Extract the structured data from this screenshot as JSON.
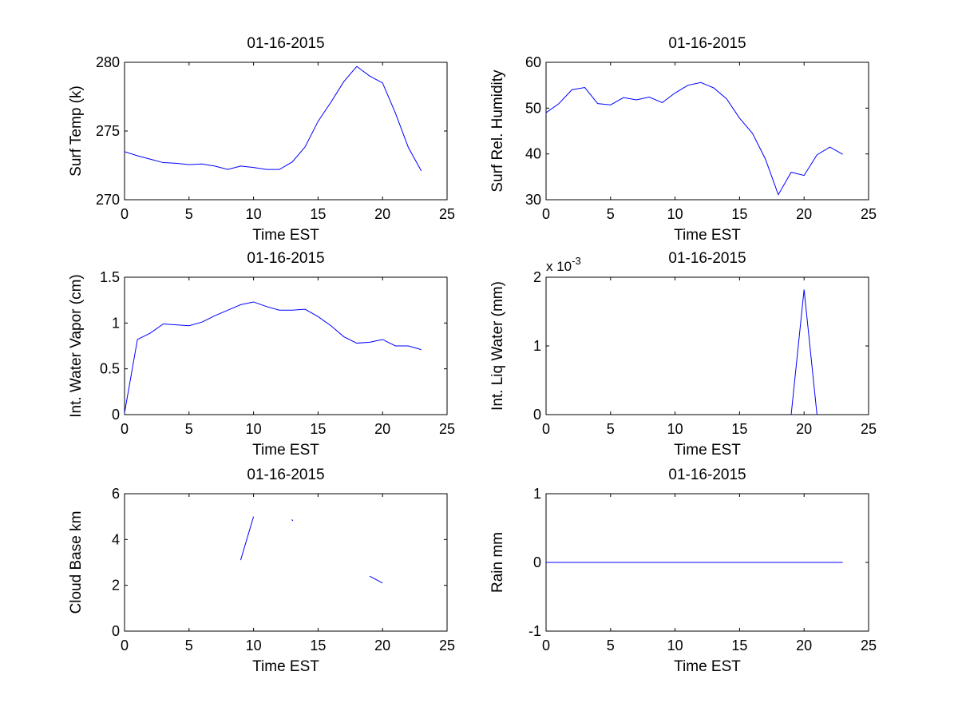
{
  "chart_data": [
    {
      "type": "line",
      "title": "01-16-2015",
      "xlabel": "Time EST",
      "ylabel": "Surf Temp (k)",
      "xlim": [
        0,
        25
      ],
      "ylim": [
        270,
        280
      ],
      "xticks": [
        0,
        5,
        10,
        15,
        20,
        25
      ],
      "yticks": [
        270,
        275,
        280
      ],
      "yticklabels": [
        "270",
        "275",
        "280"
      ],
      "grid": false,
      "line_color": "#0000ff",
      "series": [
        {
          "x": [
            0,
            1,
            2,
            3,
            4,
            5,
            6,
            7,
            8,
            9,
            10,
            11,
            12,
            13,
            14,
            15,
            16,
            17,
            18,
            19,
            20,
            21,
            22,
            23
          ],
          "y": [
            273.5,
            273.2,
            272.95,
            272.7,
            272.65,
            272.55,
            272.6,
            272.45,
            272.2,
            272.45,
            272.35,
            272.2,
            272.2,
            272.75,
            273.85,
            275.7,
            277.1,
            278.6,
            279.7,
            279.0,
            278.5,
            276.3,
            273.8,
            272.1
          ]
        }
      ]
    },
    {
      "type": "line",
      "title": "01-16-2015",
      "xlabel": "Time EST",
      "ylabel": "Surf Rel. Humidity",
      "xlim": [
        0,
        25
      ],
      "ylim": [
        30,
        60
      ],
      "xticks": [
        0,
        5,
        10,
        15,
        20,
        25
      ],
      "yticks": [
        30,
        40,
        50,
        60
      ],
      "yticklabels": [
        "30",
        "40",
        "50",
        "60"
      ],
      "grid": false,
      "line_color": "#0000ff",
      "series": [
        {
          "x": [
            0,
            1,
            2,
            3,
            4,
            5,
            6,
            7,
            8,
            9,
            10,
            11,
            12,
            13,
            14,
            15,
            16,
            17,
            18,
            19,
            20,
            21,
            22,
            23
          ],
          "y": [
            49,
            51,
            54,
            54.5,
            51,
            50.7,
            52.3,
            51.8,
            52.4,
            51.2,
            53.3,
            55,
            55.6,
            54.4,
            52,
            47.8,
            44.5,
            38.9,
            31.1,
            36,
            35.3,
            39.8,
            41.5,
            39.9
          ]
        }
      ]
    },
    {
      "type": "line",
      "title": "01-16-2015",
      "xlabel": "Time EST",
      "ylabel": "Int. Water Vapor (cm)",
      "xlim": [
        0,
        25
      ],
      "ylim": [
        0,
        1.5
      ],
      "xticks": [
        0,
        5,
        10,
        15,
        20,
        25
      ],
      "yticks": [
        0,
        0.5,
        1,
        1.5
      ],
      "yticklabels": [
        "0",
        "0.5",
        "1",
        "1.5"
      ],
      "grid": false,
      "line_color": "#0000ff",
      "series": [
        {
          "x": [
            0,
            1,
            2,
            3,
            4,
            5,
            6,
            7,
            8,
            9,
            10,
            11,
            12,
            13,
            14,
            15,
            16,
            17,
            18,
            19,
            20,
            21,
            22,
            23
          ],
          "y": [
            0.02,
            0.82,
            0.89,
            0.99,
            0.98,
            0.97,
            1.01,
            1.08,
            1.14,
            1.2,
            1.23,
            1.18,
            1.14,
            1.14,
            1.15,
            1.07,
            0.97,
            0.85,
            0.78,
            0.79,
            0.82,
            0.75,
            0.75,
            0.71
          ]
        }
      ]
    },
    {
      "type": "line",
      "title": "01-16-2015",
      "xlabel": "Time EST",
      "ylabel": "Int. Liq Water (mm)",
      "exponent_label": "x 10",
      "exponent_power": "-3",
      "xlim": [
        0,
        25
      ],
      "ylim": [
        0,
        2
      ],
      "xticks": [
        0,
        5,
        10,
        15,
        20,
        25
      ],
      "yticks": [
        0,
        1,
        2
      ],
      "yticklabels": [
        "0",
        "1",
        "2"
      ],
      "grid": false,
      "line_color": "#0000ff",
      "series": [
        {
          "x": [
            19,
            20,
            21
          ],
          "y": [
            0,
            1.82,
            0
          ]
        }
      ]
    },
    {
      "type": "line",
      "title": "01-16-2015",
      "xlabel": "Time EST",
      "ylabel": "Cloud Base km",
      "xlim": [
        0,
        25
      ],
      "ylim": [
        0,
        6
      ],
      "xticks": [
        0,
        5,
        10,
        15,
        20,
        25
      ],
      "yticks": [
        0,
        2,
        4,
        6
      ],
      "yticklabels": [
        "0",
        "2",
        "4",
        "6"
      ],
      "grid": false,
      "line_color": "#0000ff",
      "series": [
        {
          "x": [
            9,
            10
          ],
          "y": [
            3.1,
            5.0
          ]
        },
        {
          "x": [
            12.95,
            13.05
          ],
          "y": [
            4.87,
            4.82
          ]
        },
        {
          "x": [
            19,
            20
          ],
          "y": [
            2.4,
            2.1
          ]
        }
      ]
    },
    {
      "type": "line",
      "title": "01-16-2015",
      "xlabel": "Time EST",
      "ylabel": "Rain mm",
      "xlim": [
        0,
        25
      ],
      "ylim": [
        -1,
        1
      ],
      "xticks": [
        0,
        5,
        10,
        15,
        20,
        25
      ],
      "yticks": [
        -1,
        0,
        1
      ],
      "yticklabels": [
        "-1",
        "0",
        "1"
      ],
      "grid": false,
      "line_color": "#0000ff",
      "series": [
        {
          "x": [
            0,
            23
          ],
          "y": [
            0,
            0
          ]
        }
      ]
    }
  ]
}
